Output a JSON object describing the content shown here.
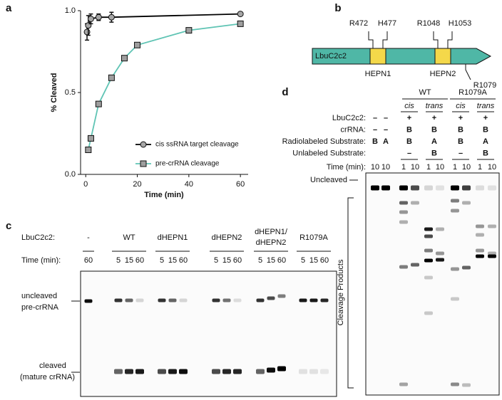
{
  "chart_data": {
    "type": "scatter",
    "panel_label": "a",
    "xlabel": "Time (min)",
    "ylabel": "% Cleaved",
    "xlim": [
      -2,
      63
    ],
    "xticks": [
      0,
      20,
      40,
      60
    ],
    "ylim": [
      0,
      1.0
    ],
    "yticks": [
      {
        "value": 0,
        "label": "0.0"
      },
      {
        "value": 0.5,
        "label": "0.5"
      },
      {
        "value": 1,
        "label": "1.0"
      }
    ],
    "legend": "lower right",
    "series": [
      {
        "name": "cis ssRNA target cleavage",
        "color": "#a6a6a6",
        "line_color": "#000000",
        "marker": "circle",
        "x": [
          0.5,
          1,
          2,
          5,
          10,
          60
        ],
        "values": [
          0.87,
          0.91,
          0.95,
          0.96,
          0.96,
          0.98
        ],
        "errors": [
          0.05,
          0.06,
          0.03,
          0.02,
          0.03,
          null
        ]
      },
      {
        "name": "pre-crRNA cleavage",
        "color": "#9e9e9e",
        "line_color": "#5fc4b4",
        "marker": "square",
        "x": [
          1,
          2,
          5,
          10,
          15,
          20,
          40,
          60
        ],
        "values": [
          0.15,
          0.22,
          0.43,
          0.59,
          0.71,
          0.79,
          0.88,
          0.92
        ]
      }
    ]
  },
  "panel_b": {
    "label": "b",
    "protein": "LbuC2c2",
    "residues": [
      "R472",
      "H477",
      "R1048",
      "H1053",
      "R1079"
    ],
    "domains": [
      "HEPN1",
      "HEPN2"
    ]
  },
  "panel_c": {
    "label": "c",
    "protein_label": "LbuC2c2:",
    "time_label": "Time (min):",
    "groups": [
      [
        "-"
      ],
      [
        "WT"
      ],
      [
        "dHEPN1"
      ],
      [
        "dHEPN2"
      ],
      [
        "dHEPN1/",
        "dHEPN2"
      ],
      [
        "R1079A"
      ]
    ],
    "times": [
      [
        60
      ],
      [
        5,
        15,
        60
      ],
      [
        5,
        15,
        60
      ],
      [
        5,
        15,
        60
      ],
      [
        5,
        15,
        60
      ],
      [
        5,
        15,
        60
      ]
    ],
    "uncleaved": [
      "uncleaved",
      "pre-crRNA"
    ],
    "cleaved": [
      "cleaved",
      "(mature crRNA)"
    ]
  },
  "panel_d": {
    "label": "d",
    "groups": [
      "WT",
      "R1079A"
    ],
    "conditions": [
      "cis",
      "trans",
      "cis",
      "trans"
    ],
    "rows": [
      {
        "label": "LbuC2c2:",
        "cells": [
          "–",
          "–",
          "+",
          "+",
          "+",
          "+"
        ]
      },
      {
        "label": "crRNA:",
        "cells": [
          "–",
          "–",
          "B",
          "B",
          "B",
          "B"
        ]
      },
      {
        "label": "Radiolabeled Substrate:",
        "cells": [
          "B",
          "A",
          "B",
          "A",
          "B",
          "A"
        ]
      },
      {
        "label": "Unlabeled Substrate:",
        "cells": [
          null,
          null,
          "–",
          "B",
          "–",
          "B"
        ]
      }
    ],
    "time": {
      "label": "Time (min):",
      "cells": [
        10,
        10,
        1,
        10,
        1,
        10,
        1,
        10,
        1,
        10
      ]
    },
    "uncleaved": "Uncleaved",
    "products": "Cleavage Products"
  }
}
